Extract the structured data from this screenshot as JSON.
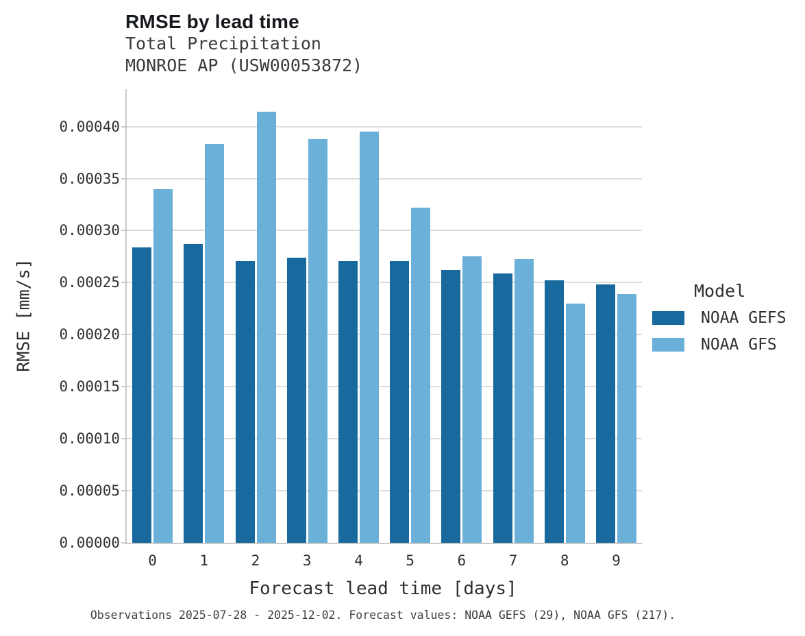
{
  "header": {
    "title": "RMSE by lead time",
    "subtitle_line1": "Total Precipitation",
    "subtitle_line2": "MONROE AP (USW00053872)"
  },
  "caption": "Observations 2025-07-28 - 2025-12-02. Forecast values: NOAA GEFS (29), NOAA GFS (217).",
  "legend": {
    "title": "Model",
    "entries": [
      {
        "label": "NOAA GEFS",
        "color": "#17699e"
      },
      {
        "label": "NOAA GFS",
        "color": "#6bb0d8"
      }
    ]
  },
  "colors": {
    "gefs_bar": "#17699e",
    "gfs_bar": "#6bb0d8",
    "gridline": "#dcdcdc",
    "axis_line": "#c9c9c9",
    "text": "#2f2f2f"
  },
  "chart_data": {
    "type": "bar",
    "title": "RMSE by lead time",
    "subtitle": [
      "Total Precipitation",
      "MONROE AP (USW00053872)"
    ],
    "xlabel": "Forecast lead time [days]",
    "ylabel": "RMSE [mm/s]",
    "categories": [
      0,
      1,
      2,
      3,
      4,
      5,
      6,
      7,
      8,
      9
    ],
    "series": [
      {
        "name": "NOAA GEFS",
        "color": "#17699e",
        "values": [
          0.000284,
          0.000287,
          0.000271,
          0.000274,
          0.000271,
          0.000271,
          0.000262,
          0.000259,
          0.000252,
          0.000248
        ]
      },
      {
        "name": "NOAA GFS",
        "color": "#6bb0d8",
        "values": [
          0.00034,
          0.000383,
          0.000414,
          0.000388,
          0.000395,
          0.000322,
          0.000275,
          0.000273,
          0.00023,
          0.000239
        ]
      }
    ],
    "ylim": [
      0,
      0.000436
    ],
    "yticks": [
      0,
      5e-05,
      0.0001,
      0.00015,
      0.0002,
      0.00025,
      0.0003,
      0.00035,
      0.0004
    ],
    "ytick_format": "0.00000",
    "grid": true,
    "legend_title": "Model",
    "legend_position": "right"
  }
}
